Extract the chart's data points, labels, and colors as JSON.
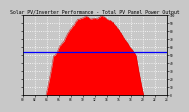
{
  "title": "Solar PV/Inverter Performance - Total PV Panel Power Output",
  "bg_color": "#c8c8c8",
  "plot_bg_color": "#c8c8c8",
  "fill_color": "#ff0000",
  "line_color": "#cc0000",
  "hline_color": "#0000ff",
  "hline_y": 0.54,
  "grid_color": "#ffffff",
  "ymax": 1.0,
  "ymin": 0.0,
  "n_points": 288,
  "title_fontsize": 3.5,
  "tick_fontsize": 2.2
}
